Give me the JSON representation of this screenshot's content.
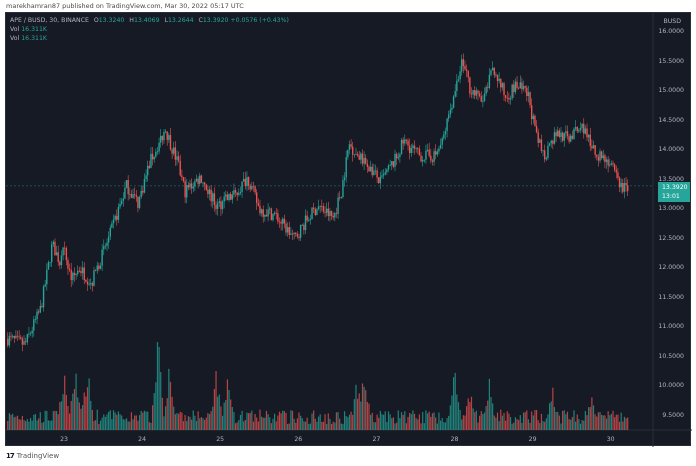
{
  "publisher_line": "marekhamran87 published on TradingView.com, Mar 30, 2022 05:17 UTC",
  "legend": {
    "symbol": "APE / BUSD, 30, BINANCE",
    "open_label": "O",
    "open": "13.3240",
    "high_label": "H",
    "high": "13.4069",
    "low_label": "L",
    "low": "13.2644",
    "close_label": "C",
    "close": "13.3920",
    "change": "+0.0576 (+0.43%)",
    "vol_rows": [
      {
        "label": "Vol",
        "value": "16.311K"
      },
      {
        "label": "Vol",
        "value": "16.311K"
      }
    ]
  },
  "price_axis": {
    "currency": "BUSD",
    "current_price": "13.3920",
    "countdown": "13:01"
  },
  "footer": {
    "brand": "TradingView",
    "logo": "17"
  },
  "colors": {
    "background": "#161a25",
    "up": "#26a69a",
    "down": "#ef5350",
    "text": "#b2b5be",
    "grid": "#1f2430"
  },
  "chart_data": {
    "type": "candlestick",
    "title": "APE / BUSD, 30, BINANCE",
    "xlabel": "",
    "ylabel": "BUSD",
    "ylim": [
      9.2,
      16.2
    ],
    "y_ticks": [
      "16.0000",
      "15.5000",
      "15.0000",
      "14.5000",
      "14.0000",
      "13.5000",
      "13.0000",
      "12.5000",
      "12.0000",
      "11.5000",
      "11.0000",
      "10.5000",
      "10.0000",
      "9.5000"
    ],
    "x_ticks": [
      "23",
      "24",
      "25",
      "26",
      "27",
      "28",
      "29",
      "30"
    ],
    "grid": false,
    "legend_position": "top-left",
    "interval": "30m",
    "price_path": [
      {
        "day": 22.3,
        "price": 10.8
      },
      {
        "day": 22.5,
        "price": 10.7
      },
      {
        "day": 22.7,
        "price": 11.3
      },
      {
        "day": 22.85,
        "price": 12.4
      },
      {
        "day": 22.95,
        "price": 12.1
      },
      {
        "day": 23.0,
        "price": 12.3
      },
      {
        "day": 23.1,
        "price": 11.8
      },
      {
        "day": 23.2,
        "price": 12.0
      },
      {
        "day": 23.35,
        "price": 11.75
      },
      {
        "day": 23.6,
        "price": 12.6
      },
      {
        "day": 23.8,
        "price": 13.4
      },
      {
        "day": 23.95,
        "price": 13.1
      },
      {
        "day": 24.1,
        "price": 13.8
      },
      {
        "day": 24.3,
        "price": 14.35
      },
      {
        "day": 24.45,
        "price": 13.8
      },
      {
        "day": 24.55,
        "price": 13.3
      },
      {
        "day": 24.75,
        "price": 13.55
      },
      {
        "day": 24.95,
        "price": 13.05
      },
      {
        "day": 25.2,
        "price": 13.25
      },
      {
        "day": 25.35,
        "price": 13.55
      },
      {
        "day": 25.5,
        "price": 13.0
      },
      {
        "day": 25.7,
        "price": 12.9
      },
      {
        "day": 25.95,
        "price": 12.5
      },
      {
        "day": 26.1,
        "price": 12.8
      },
      {
        "day": 26.25,
        "price": 13.05
      },
      {
        "day": 26.45,
        "price": 12.85
      },
      {
        "day": 26.55,
        "price": 13.3
      },
      {
        "day": 26.65,
        "price": 14.1
      },
      {
        "day": 26.8,
        "price": 13.85
      },
      {
        "day": 26.95,
        "price": 13.65
      },
      {
        "day": 27.05,
        "price": 13.45
      },
      {
        "day": 27.25,
        "price": 13.85
      },
      {
        "day": 27.35,
        "price": 14.15
      },
      {
        "day": 27.55,
        "price": 13.9
      },
      {
        "day": 27.75,
        "price": 13.9
      },
      {
        "day": 27.85,
        "price": 14.15
      },
      {
        "day": 28.0,
        "price": 15.0
      },
      {
        "day": 28.1,
        "price": 15.5
      },
      {
        "day": 28.2,
        "price": 15.05
      },
      {
        "day": 28.35,
        "price": 14.8
      },
      {
        "day": 28.5,
        "price": 15.4
      },
      {
        "day": 28.65,
        "price": 14.9
      },
      {
        "day": 28.8,
        "price": 15.1
      },
      {
        "day": 28.95,
        "price": 14.9
      },
      {
        "day": 29.05,
        "price": 14.2
      },
      {
        "day": 29.15,
        "price": 13.9
      },
      {
        "day": 29.3,
        "price": 14.3
      },
      {
        "day": 29.45,
        "price": 14.2
      },
      {
        "day": 29.65,
        "price": 14.4
      },
      {
        "day": 29.8,
        "price": 13.95
      },
      {
        "day": 29.95,
        "price": 13.85
      },
      {
        "day": 30.05,
        "price": 13.6
      },
      {
        "day": 30.15,
        "price": 13.35
      },
      {
        "day": 30.22,
        "price": 13.39
      }
    ],
    "volume_spikes": [
      {
        "day": 23.0,
        "value": 0.55
      },
      {
        "day": 23.15,
        "value": 0.6
      },
      {
        "day": 23.3,
        "value": 0.55
      },
      {
        "day": 24.2,
        "value": 0.85
      },
      {
        "day": 24.35,
        "value": 0.6
      },
      {
        "day": 24.95,
        "value": 0.55
      },
      {
        "day": 25.1,
        "value": 0.5
      },
      {
        "day": 26.75,
        "value": 0.45
      },
      {
        "day": 26.85,
        "value": 0.55
      },
      {
        "day": 28.0,
        "value": 0.55
      },
      {
        "day": 28.2,
        "value": 0.4
      },
      {
        "day": 28.45,
        "value": 0.45
      },
      {
        "day": 29.25,
        "value": 0.4
      },
      {
        "day": 29.75,
        "value": 0.3
      }
    ],
    "current_price": 13.392
  }
}
